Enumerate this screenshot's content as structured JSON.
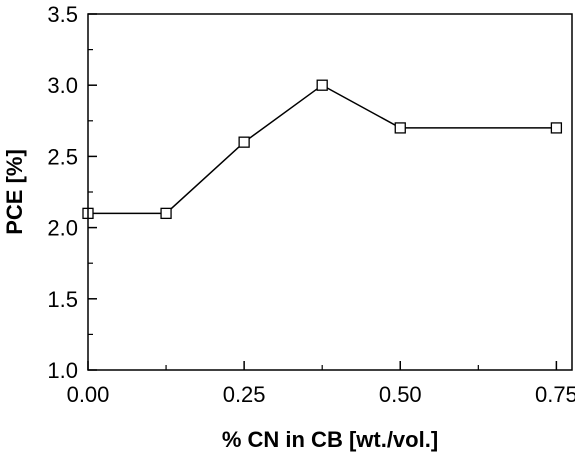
{
  "chart_data": {
    "type": "line",
    "title": "",
    "xlabel": "% CN in CB [wt./vol.]",
    "ylabel": "PCE [%]",
    "xlim": [
      0.0,
      0.775
    ],
    "ylim": [
      1.0,
      3.5
    ],
    "x_ticks": [
      "0.00",
      "0.25",
      "0.50",
      "0.75"
    ],
    "x_tick_values": [
      0.0,
      0.25,
      0.5,
      0.75
    ],
    "y_ticks": [
      "1.0",
      "1.5",
      "2.0",
      "2.5",
      "3.0",
      "3.5"
    ],
    "y_tick_values": [
      1.0,
      1.5,
      2.0,
      2.5,
      3.0,
      3.5
    ],
    "grid": false,
    "legend": "none",
    "marker": "open-square",
    "line_color": "#000000",
    "series": [
      {
        "x": [
          0.0,
          0.125,
          0.25,
          0.375,
          0.5,
          0.75
        ],
        "values": [
          2.1,
          2.1,
          2.6,
          3.0,
          2.7,
          2.7
        ]
      }
    ]
  }
}
